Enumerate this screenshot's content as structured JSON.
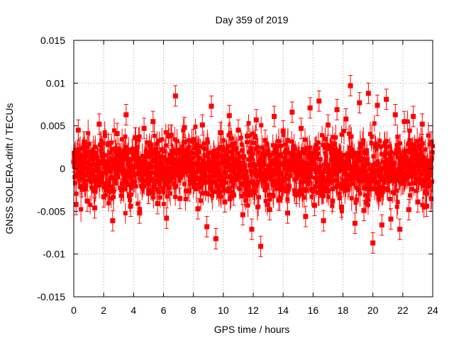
{
  "chart_data": {
    "type": "scatter",
    "title": "Day 359 of 2019",
    "xlabel": "GPS time / hours",
    "ylabel": "GNSS SOLERA-drift / TECUs",
    "xlim": [
      0,
      24
    ],
    "ylim": [
      -0.015,
      0.015
    ],
    "x_ticks": [
      "0",
      "2",
      "4",
      "6",
      "8",
      "10",
      "12",
      "14",
      "16",
      "18",
      "20",
      "22",
      "24"
    ],
    "y_ticks": [
      "-0.015",
      "-0.01",
      "-0.005",
      "0",
      "0.005",
      "0.01",
      "0.015"
    ],
    "grid": true,
    "error_bars": true,
    "color": "#ff0000",
    "series": [
      {
        "marker": "square",
        "error_bar_halfwidth_typical": 0.0012,
        "x": [
          0.0,
          0.15,
          0.3,
          0.5,
          0.7,
          0.9,
          1.1,
          1.4,
          1.7,
          2.0,
          2.3,
          2.6,
          2.9,
          3.2,
          3.5,
          3.8,
          4.1,
          4.4,
          4.7,
          5.0,
          5.3,
          5.6,
          5.9,
          6.2,
          6.5,
          6.8,
          7.1,
          7.4,
          7.7,
          8.0,
          8.3,
          8.6,
          8.9,
          9.2,
          9.5,
          9.8,
          10.1,
          10.4,
          10.7,
          11.0,
          11.3,
          11.6,
          11.9,
          12.2,
          12.5,
          12.8,
          13.1,
          13.4,
          13.7,
          14.0,
          14.3,
          14.6,
          14.9,
          15.2,
          15.5,
          15.8,
          16.1,
          16.4,
          16.7,
          17.0,
          17.3,
          17.6,
          17.9,
          18.2,
          18.5,
          18.8,
          19.1,
          19.4,
          19.7,
          20.0,
          20.3,
          20.6,
          20.9,
          21.2,
          21.5,
          21.8,
          22.1,
          22.4,
          22.7,
          23.0,
          23.3,
          23.6,
          23.9
        ],
        "y": [
          0.0008,
          -0.0042,
          0.0045,
          -0.0021,
          0.0031,
          -0.0038,
          0.0019,
          -0.0046,
          0.0052,
          -0.0033,
          0.0028,
          -0.0061,
          0.0041,
          -0.0025,
          0.0063,
          -0.0044,
          0.0036,
          -0.0052,
          0.0047,
          -0.0029,
          0.0055,
          -0.0041,
          0.0022,
          -0.0058,
          0.0039,
          0.0085,
          -0.0035,
          0.0048,
          -0.0026,
          0.0034,
          -0.0047,
          0.0051,
          -0.0068,
          0.0073,
          -0.0082,
          0.0042,
          -0.0039,
          0.0062,
          -0.0031,
          0.0045,
          -0.0054,
          0.0038,
          -0.0071,
          0.0057,
          -0.0091,
          0.0033,
          -0.0048,
          0.0061,
          -0.0037,
          0.0044,
          -0.0052,
          0.0066,
          -0.0029,
          0.0047,
          -0.0056,
          0.0071,
          -0.0043,
          0.0079,
          -0.0061,
          0.0051,
          -0.0038,
          0.0069,
          -0.0045,
          0.0058,
          0.0097,
          -0.0064,
          0.0077,
          -0.0049,
          0.0088,
          -0.0087,
          0.0074,
          -0.0066,
          0.0081,
          -0.0059,
          0.0063,
          -0.0071,
          0.0055,
          -0.0048,
          0.0061,
          -0.0039,
          0.0052,
          -0.0044,
          0.0031
        ]
      }
    ]
  }
}
